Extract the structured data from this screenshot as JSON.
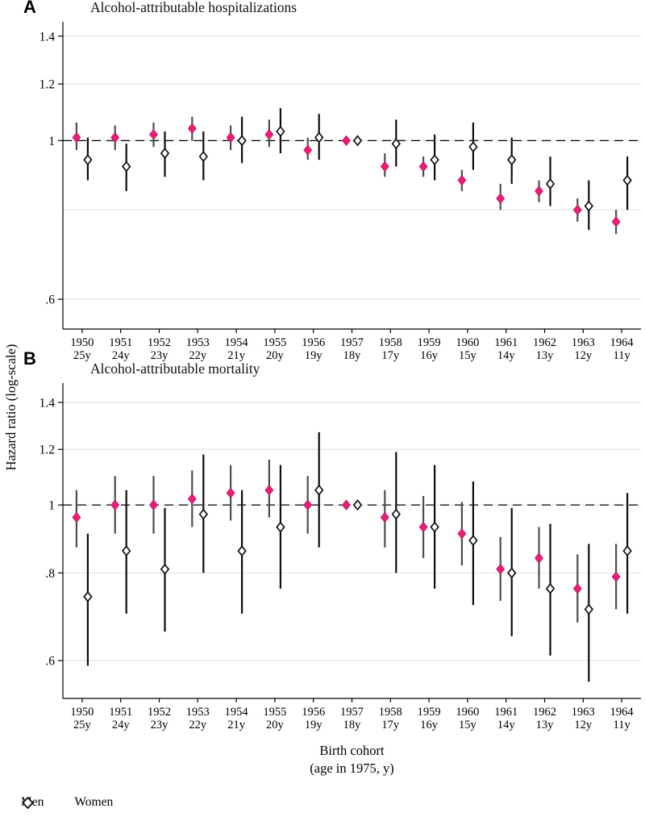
{
  "figure": {
    "ylabel": "Hazard ratio (log-scale)",
    "xlabel_line1": "Birth cohort",
    "xlabel_line2": "(age in 1975, y)",
    "colors": {
      "men": "#ED1E79",
      "men_edge": "#C4125F",
      "women": "#111111",
      "ci_men": "#4D4D4D",
      "ci_women": "#0D0D0D",
      "grid": "#DCEBE2"
    },
    "legend": [
      {
        "label": "Men",
        "marker": "filled-diamond"
      },
      {
        "label": "Women",
        "marker": "open-diamond"
      }
    ]
  },
  "chart_data": [
    {
      "type": "scatter",
      "panel_label": "A",
      "title": "Alcohol-attributable hospitalizations",
      "categories": [
        "1950",
        "1951",
        "1952",
        "1953",
        "1954",
        "1955",
        "1956",
        "1957",
        "1958",
        "1959",
        "1960",
        "1961",
        "1962",
        "1963",
        "1964"
      ],
      "ages": [
        "25y",
        "24y",
        "23y",
        "22y",
        "21y",
        "20y",
        "19y",
        "18y",
        "17y",
        "16y",
        "15y",
        "14y",
        "13y",
        "12y",
        "11y"
      ],
      "ylim": [
        0.545,
        1.455
      ],
      "yticks": [
        1.4,
        1.2,
        1,
        0.6
      ],
      "ytick_labels": [
        "1.4",
        "1.2",
        "1",
        ".6"
      ],
      "gridlines": [
        1.4,
        1.2,
        1,
        0.8,
        0.6
      ],
      "refline": 1,
      "reference_index": 7,
      "series": [
        {
          "name": "Men",
          "values": [
            1.01,
            1.01,
            1.02,
            1.04,
            1.01,
            1.02,
            0.97,
            1.0,
            0.92,
            0.92,
            0.88,
            0.83,
            0.85,
            0.8,
            0.77
          ],
          "ci_low": [
            0.97,
            0.97,
            0.98,
            1.0,
            0.97,
            0.98,
            0.94,
            1.0,
            0.89,
            0.89,
            0.85,
            0.8,
            0.82,
            0.77,
            0.74
          ],
          "ci_high": [
            1.06,
            1.05,
            1.06,
            1.08,
            1.05,
            1.07,
            1.01,
            1.0,
            0.96,
            0.95,
            0.91,
            0.87,
            0.88,
            0.83,
            0.8
          ]
        },
        {
          "name": "Women",
          "values": [
            0.94,
            0.92,
            0.96,
            0.95,
            1.0,
            1.03,
            1.01,
            1.0,
            0.99,
            0.94,
            0.98,
            0.94,
            0.87,
            0.81,
            0.88
          ],
          "ci_low": [
            0.88,
            0.85,
            0.89,
            0.88,
            0.93,
            0.96,
            0.94,
            1.0,
            0.92,
            0.88,
            0.91,
            0.87,
            0.81,
            0.75,
            0.8
          ],
          "ci_high": [
            1.01,
            0.99,
            1.03,
            1.03,
            1.08,
            1.11,
            1.09,
            1.0,
            1.07,
            1.02,
            1.06,
            1.01,
            0.95,
            0.88,
            0.95
          ]
        }
      ]
    },
    {
      "type": "scatter",
      "panel_label": "B",
      "title": "Alcohol-attributable mortality",
      "categories": [
        "1950",
        "1951",
        "1952",
        "1953",
        "1954",
        "1955",
        "1956",
        "1957",
        "1958",
        "1959",
        "1960",
        "1961",
        "1962",
        "1963",
        "1964"
      ],
      "ages": [
        "25y",
        "24y",
        "23y",
        "22y",
        "21y",
        "20y",
        "19y",
        "18y",
        "17y",
        "16y",
        "15y",
        "14y",
        "13y",
        "12y",
        "11y"
      ],
      "ylim": [
        0.53,
        1.48
      ],
      "yticks": [
        1.4,
        1.2,
        1,
        0.8,
        0.6
      ],
      "ytick_labels": [
        "1.4",
        "1.2",
        "1",
        ".8",
        ".6"
      ],
      "gridlines": [
        1.4,
        1.2,
        1,
        0.8,
        0.6
      ],
      "refline": 1,
      "reference_index": 7,
      "series": [
        {
          "name": "Men",
          "values": [
            0.96,
            1.0,
            1.0,
            1.02,
            1.04,
            1.05,
            1.0,
            1.0,
            0.96,
            0.93,
            0.91,
            0.81,
            0.84,
            0.76,
            0.79
          ],
          "ci_low": [
            0.87,
            0.91,
            0.91,
            0.93,
            0.95,
            0.96,
            0.91,
            1.0,
            0.87,
            0.84,
            0.82,
            0.73,
            0.76,
            0.68,
            0.71
          ],
          "ci_high": [
            1.05,
            1.1,
            1.1,
            1.12,
            1.14,
            1.16,
            1.1,
            1.0,
            1.05,
            1.03,
            1.01,
            0.9,
            0.93,
            0.85,
            0.88
          ]
        },
        {
          "name": "Women",
          "values": [
            0.74,
            0.86,
            0.81,
            0.97,
            0.86,
            0.93,
            1.05,
            1.0,
            0.97,
            0.93,
            0.89,
            0.8,
            0.76,
            0.71,
            0.86
          ],
          "ci_low": [
            0.59,
            0.7,
            0.66,
            0.8,
            0.7,
            0.76,
            0.87,
            1.0,
            0.8,
            0.76,
            0.72,
            0.65,
            0.61,
            0.56,
            0.7
          ],
          "ci_high": [
            0.91,
            1.05,
            0.99,
            1.18,
            1.05,
            1.14,
            1.27,
            1.0,
            1.19,
            1.14,
            1.08,
            0.99,
            0.94,
            0.88,
            1.04
          ]
        }
      ]
    }
  ]
}
